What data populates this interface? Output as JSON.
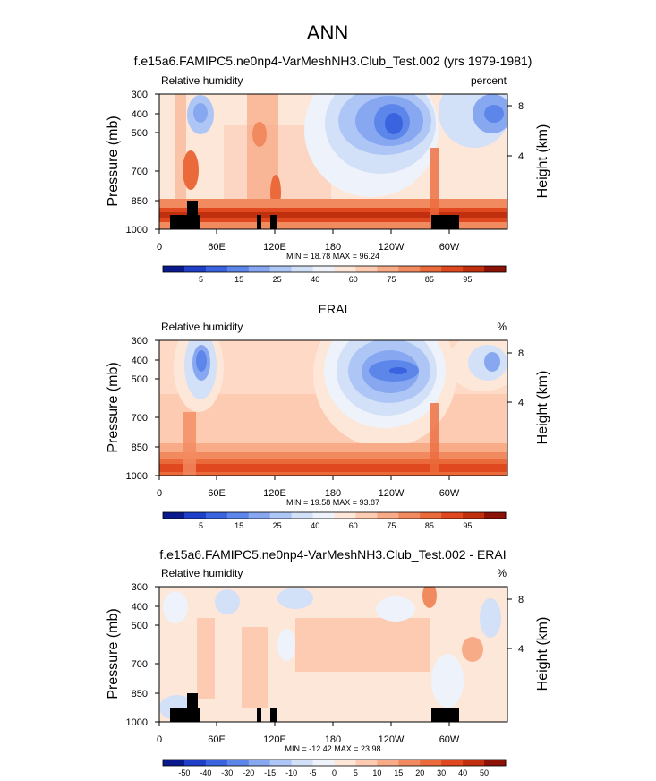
{
  "page_title": "ANN",
  "panels": [
    {
      "title": "f.e15a6.FAMIPC5.ne0np4-VarMeshNH3.Club_Test.002 (yrs 1979-1981)",
      "left_label": "Relative humidity",
      "right_label": "percent",
      "stats": "MIN =  18.78  MAX =  96.24"
    },
    {
      "title": "ERAI",
      "left_label": "Relative humidity",
      "right_label": "%",
      "stats": "MIN =  19.58  MAX =  93.87"
    },
    {
      "title": "f.e15a6.FAMIPC5.ne0np4-VarMeshNH3.Club_Test.002 - ERAI",
      "left_label": "Relative humidity",
      "right_label": "%",
      "stats": "MIN = -12.42  MAX =  23.98"
    }
  ],
  "chart_data": [
    {
      "type": "heatmap",
      "title": "f.e15a6.FAMIPC5.ne0np4-VarMeshNH3.Club_Test.002 (yrs 1979-1981)",
      "variable": "Relative humidity",
      "units": "percent",
      "ylabel": "Pressure (mb)",
      "ylabel_right": "Height (km)",
      "y_ticks": [
        "300",
        "400",
        "500",
        "700",
        "850",
        "1000"
      ],
      "y_right_ticks": [
        "8",
        "4"
      ],
      "x_ticks": [
        "0",
        "60E",
        "120E",
        "180",
        "120W",
        "60W"
      ],
      "colorbar_labels": [
        "5",
        "15",
        "25",
        "40",
        "60",
        "75",
        "85",
        "95"
      ],
      "colorbar_colors": [
        "#0a1a8c",
        "#1f3fc8",
        "#3a63e0",
        "#5d86ea",
        "#87a8f0",
        "#aec6f5",
        "#d2e0f8",
        "#eef2fb",
        "#fde7d9",
        "#fccbb2",
        "#f8ab87",
        "#f28a60",
        "#eb6a3c",
        "#e0481f",
        "#c0300f",
        "#8c1208"
      ],
      "min": 18.78,
      "max": 96.24
    },
    {
      "type": "heatmap",
      "title": "ERAI",
      "variable": "Relative humidity",
      "units": "%",
      "ylabel": "Pressure (mb)",
      "ylabel_right": "Height (km)",
      "y_ticks": [
        "300",
        "400",
        "500",
        "700",
        "850",
        "1000"
      ],
      "y_right_ticks": [
        "8",
        "4"
      ],
      "x_ticks": [
        "0",
        "60E",
        "120E",
        "180",
        "120W",
        "60W"
      ],
      "colorbar_labels": [
        "5",
        "15",
        "25",
        "40",
        "60",
        "75",
        "85",
        "95"
      ],
      "colorbar_colors": [
        "#0a1a8c",
        "#1f3fc8",
        "#3a63e0",
        "#5d86ea",
        "#87a8f0",
        "#aec6f5",
        "#d2e0f8",
        "#eef2fb",
        "#fde7d9",
        "#fccbb2",
        "#f8ab87",
        "#f28a60",
        "#eb6a3c",
        "#e0481f",
        "#c0300f",
        "#8c1208"
      ],
      "min": 19.58,
      "max": 93.87
    },
    {
      "type": "heatmap",
      "title": "f.e15a6.FAMIPC5.ne0np4-VarMeshNH3.Club_Test.002 - ERAI",
      "variable": "Relative humidity",
      "units": "%",
      "ylabel": "Pressure (mb)",
      "ylabel_right": "Height (km)",
      "y_ticks": [
        "300",
        "400",
        "500",
        "700",
        "850",
        "1000"
      ],
      "y_right_ticks": [
        "8",
        "4"
      ],
      "x_ticks": [
        "0",
        "60E",
        "120E",
        "180",
        "120W",
        "60W"
      ],
      "colorbar_labels": [
        "-50",
        "-40",
        "-30",
        "-20",
        "-15",
        "-10",
        "-5",
        "0",
        "5",
        "10",
        "15",
        "20",
        "30",
        "40",
        "50"
      ],
      "colorbar_colors": [
        "#0a1a8c",
        "#1f3fc8",
        "#3a63e0",
        "#5d86ea",
        "#87a8f0",
        "#aec6f5",
        "#d2e0f8",
        "#eef2fb",
        "#fde7d9",
        "#fccbb2",
        "#f8ab87",
        "#f28a60",
        "#eb6a3c",
        "#e0481f",
        "#c0300f",
        "#8c1208"
      ],
      "min": -12.42,
      "max": 23.98
    }
  ]
}
